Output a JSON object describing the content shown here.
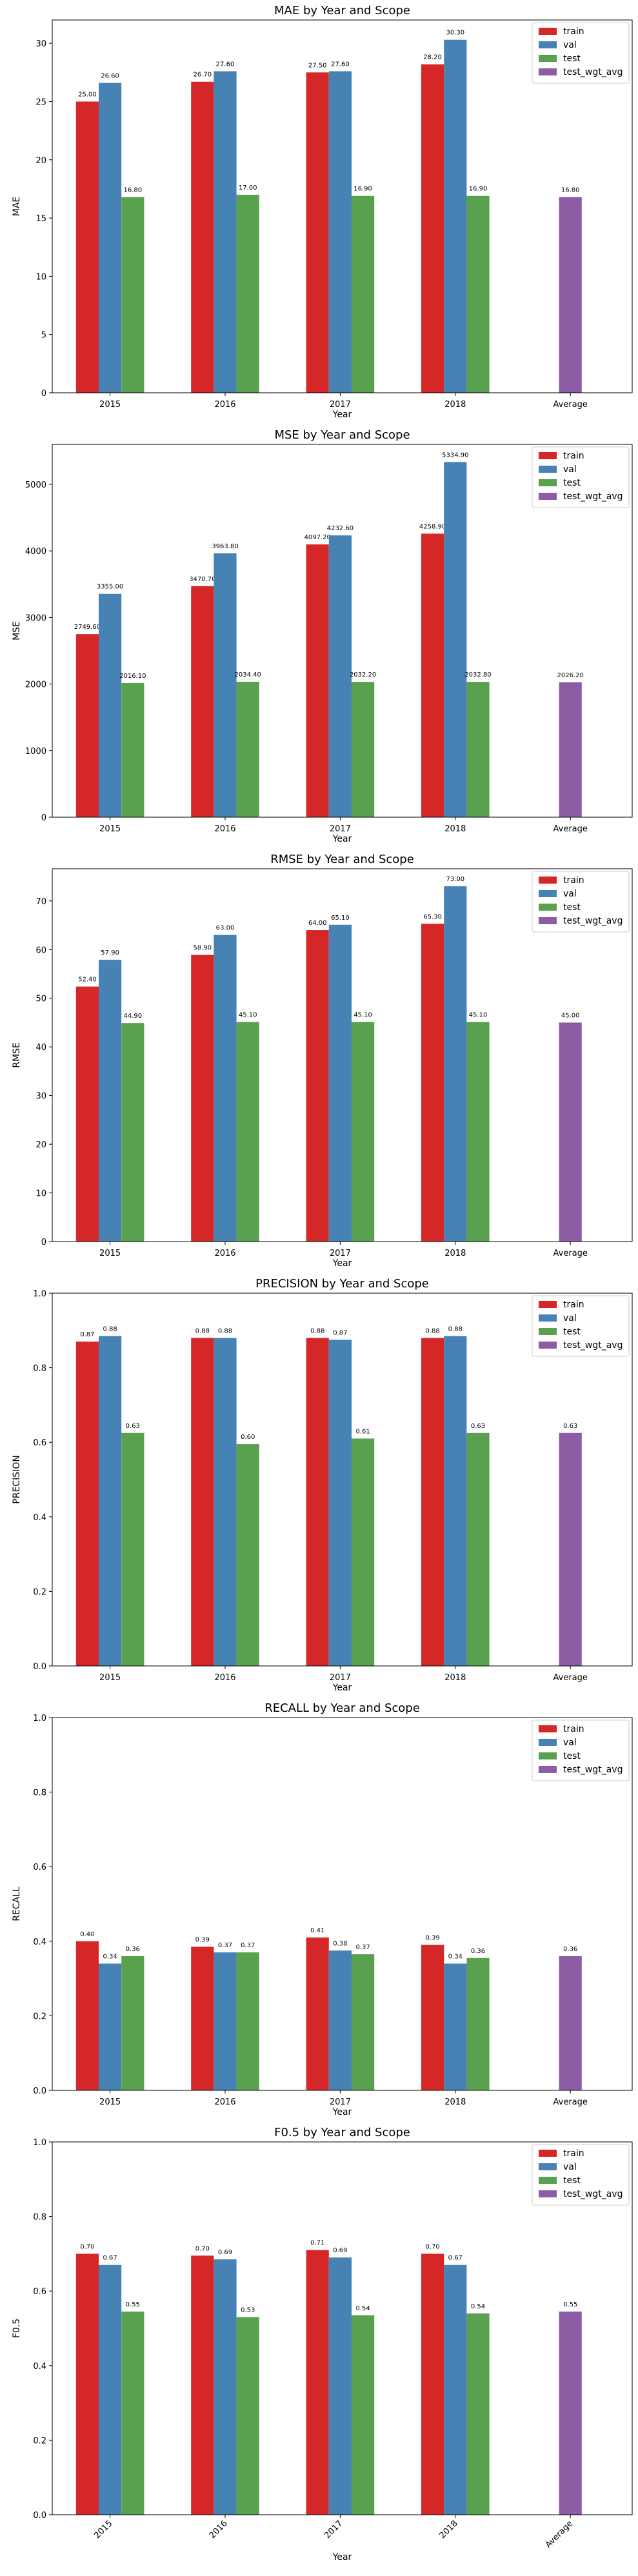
{
  "legend_labels": [
    "train",
    "val",
    "test",
    "test_wgt_avg"
  ],
  "colors": {
    "train": "#d62728",
    "val": "#4682b4",
    "test": "#59a14f",
    "test_wgt_avg": "#8e5ba5"
  },
  "chart_data": [
    {
      "type": "bar",
      "title": "MAE by Year and Scope",
      "xlabel": "Year",
      "ylabel": "MAE",
      "categories": [
        "2015",
        "2016",
        "2017",
        "2018",
        "Average"
      ],
      "ylim": [
        0,
        32
      ],
      "yticks": [
        0,
        5,
        10,
        15,
        20,
        25,
        30
      ],
      "tick_labels": [
        "0",
        "5",
        "10",
        "15",
        "20",
        "25",
        "30"
      ],
      "legend": "top-right",
      "series": [
        {
          "name": "train",
          "values": [
            25.0,
            26.7,
            27.5,
            28.2,
            null
          ],
          "labels": [
            "25.00",
            "26.70",
            "27.50",
            "28.20",
            ""
          ]
        },
        {
          "name": "val",
          "values": [
            26.6,
            27.6,
            27.6,
            30.3,
            null
          ],
          "labels": [
            "26.60",
            "27.60",
            "27.60",
            "30.30",
            ""
          ]
        },
        {
          "name": "test",
          "values": [
            16.8,
            17.0,
            16.9,
            16.9,
            null
          ],
          "labels": [
            "16.80",
            "17.00",
            "16.90",
            "16.90",
            ""
          ]
        },
        {
          "name": "test_wgt_avg",
          "values": [
            null,
            null,
            null,
            null,
            16.8
          ],
          "labels": [
            "",
            "",
            "",
            "",
            "16.80"
          ]
        }
      ]
    },
    {
      "type": "bar",
      "title": "MSE by Year and Scope",
      "xlabel": "Year",
      "ylabel": "MSE",
      "categories": [
        "2015",
        "2016",
        "2017",
        "2018",
        "Average"
      ],
      "ylim": [
        0,
        5600
      ],
      "yticks": [
        0,
        1000,
        2000,
        3000,
        4000,
        5000
      ],
      "tick_labels": [
        "0",
        "1000",
        "2000",
        "3000",
        "4000",
        "5000"
      ],
      "legend": "top-right",
      "series": [
        {
          "name": "train",
          "values": [
            2749.6,
            3470.7,
            4097.2,
            4258.9,
            null
          ],
          "labels": [
            "2749.60",
            "3470.70",
            "4097.20",
            "4258.90",
            ""
          ]
        },
        {
          "name": "val",
          "values": [
            3355.0,
            3963.8,
            4232.6,
            5334.9,
            null
          ],
          "labels": [
            "3355.00",
            "3963.80",
            "4232.60",
            "5334.90",
            ""
          ]
        },
        {
          "name": "test",
          "values": [
            2016.1,
            2034.4,
            2032.2,
            2032.8,
            null
          ],
          "labels": [
            "2016.10",
            "2034.40",
            "2032.20",
            "2032.80",
            ""
          ]
        },
        {
          "name": "test_wgt_avg",
          "values": [
            null,
            null,
            null,
            null,
            2026.2
          ],
          "labels": [
            "",
            "",
            "",
            "",
            "2026.20"
          ]
        }
      ]
    },
    {
      "type": "bar",
      "title": "RMSE by Year and Scope",
      "xlabel": "Year",
      "ylabel": "RMSE",
      "categories": [
        "2015",
        "2016",
        "2017",
        "2018",
        "Average"
      ],
      "ylim": [
        0,
        76.6
      ],
      "yticks": [
        0,
        10,
        20,
        30,
        40,
        50,
        60,
        70
      ],
      "tick_labels": [
        "0",
        "10",
        "20",
        "30",
        "40",
        "50",
        "60",
        "70"
      ],
      "legend": "top-right",
      "series": [
        {
          "name": "train",
          "values": [
            52.4,
            58.9,
            64.0,
            65.3,
            null
          ],
          "labels": [
            "52.40",
            "58.90",
            "64.00",
            "65.30",
            ""
          ]
        },
        {
          "name": "val",
          "values": [
            57.9,
            63.0,
            65.1,
            73.0,
            null
          ],
          "labels": [
            "57.90",
            "63.00",
            "65.10",
            "73.00",
            ""
          ]
        },
        {
          "name": "test",
          "values": [
            44.9,
            45.1,
            45.1,
            45.1,
            null
          ],
          "labels": [
            "44.90",
            "45.10",
            "45.10",
            "45.10",
            ""
          ]
        },
        {
          "name": "test_wgt_avg",
          "values": [
            null,
            null,
            null,
            null,
            45.0
          ],
          "labels": [
            "",
            "",
            "",
            "",
            "45.00"
          ]
        }
      ]
    },
    {
      "type": "bar",
      "title": "PRECISION by Year and Scope",
      "xlabel": "Year",
      "ylabel": "PRECISION",
      "categories": [
        "2015",
        "2016",
        "2017",
        "2018",
        "Average"
      ],
      "ylim": [
        0,
        1.0
      ],
      "yticks": [
        0,
        0.2,
        0.4,
        0.6,
        0.8,
        1.0
      ],
      "tick_labels": [
        "0.0",
        "0.2",
        "0.4",
        "0.6",
        "0.8",
        "1.0"
      ],
      "legend": "top-right",
      "series": [
        {
          "name": "train",
          "values": [
            0.87,
            0.88,
            0.88,
            0.88,
            null
          ],
          "labels": [
            "0.87",
            "0.88",
            "0.88",
            "0.88",
            ""
          ]
        },
        {
          "name": "val",
          "values": [
            0.885,
            0.88,
            0.875,
            0.885,
            null
          ],
          "labels": [
            "0.88",
            "0.88",
            "0.87",
            "0.88",
            ""
          ]
        },
        {
          "name": "test",
          "values": [
            0.625,
            0.595,
            0.61,
            0.625,
            null
          ],
          "labels": [
            "0.63",
            "0.60",
            "0.61",
            "0.63",
            ""
          ]
        },
        {
          "name": "test_wgt_avg",
          "values": [
            null,
            null,
            null,
            null,
            0.625
          ],
          "labels": [
            "",
            "",
            "",
            "",
            "0.63"
          ]
        }
      ]
    },
    {
      "type": "bar",
      "title": "RECALL by Year and Scope",
      "xlabel": "Year",
      "ylabel": "RECALL",
      "categories": [
        "2015",
        "2016",
        "2017",
        "2018",
        "Average"
      ],
      "ylim": [
        0,
        1.0
      ],
      "yticks": [
        0,
        0.2,
        0.4,
        0.6,
        0.8,
        1.0
      ],
      "tick_labels": [
        "0.0",
        "0.2",
        "0.4",
        "0.6",
        "0.8",
        "1.0"
      ],
      "legend": "top-right",
      "series": [
        {
          "name": "train",
          "values": [
            0.4,
            0.385,
            0.41,
            0.39,
            null
          ],
          "labels": [
            "0.40",
            "0.39",
            "0.41",
            "0.39",
            ""
          ]
        },
        {
          "name": "val",
          "values": [
            0.34,
            0.37,
            0.375,
            0.34,
            null
          ],
          "labels": [
            "0.34",
            "0.37",
            "0.38",
            "0.34",
            ""
          ]
        },
        {
          "name": "test",
          "values": [
            0.36,
            0.37,
            0.365,
            0.355,
            null
          ],
          "labels": [
            "0.36",
            "0.37",
            "0.37",
            "0.36",
            ""
          ]
        },
        {
          "name": "test_wgt_avg",
          "values": [
            null,
            null,
            null,
            null,
            0.36
          ],
          "labels": [
            "",
            "",
            "",
            "",
            "0.36"
          ]
        }
      ]
    },
    {
      "type": "bar",
      "title": "F0.5 by Year and Scope",
      "xlabel": "Year",
      "ylabel": "F0.5",
      "categories": [
        "2015",
        "2016",
        "2017",
        "2018",
        "Average"
      ],
      "ylim": [
        0,
        1.0
      ],
      "yticks": [
        0,
        0.2,
        0.4,
        0.6,
        0.8,
        1.0
      ],
      "tick_labels": [
        "0.0",
        "0.2",
        "0.4",
        "0.6",
        "0.8",
        "1.0"
      ],
      "rotated_ticks": true,
      "legend": "top-right",
      "series": [
        {
          "name": "train",
          "values": [
            0.7,
            0.695,
            0.71,
            0.7,
            null
          ],
          "labels": [
            "0.70",
            "0.70",
            "0.71",
            "0.70",
            ""
          ]
        },
        {
          "name": "val",
          "values": [
            0.67,
            0.685,
            0.69,
            0.67,
            null
          ],
          "labels": [
            "0.67",
            "0.69",
            "0.69",
            "0.67",
            ""
          ]
        },
        {
          "name": "test",
          "values": [
            0.545,
            0.53,
            0.535,
            0.54,
            null
          ],
          "labels": [
            "0.55",
            "0.53",
            "0.54",
            "0.54",
            ""
          ]
        },
        {
          "name": "test_wgt_avg",
          "values": [
            null,
            null,
            null,
            null,
            0.545
          ],
          "labels": [
            "",
            "",
            "",
            "",
            "0.55"
          ]
        }
      ]
    }
  ]
}
